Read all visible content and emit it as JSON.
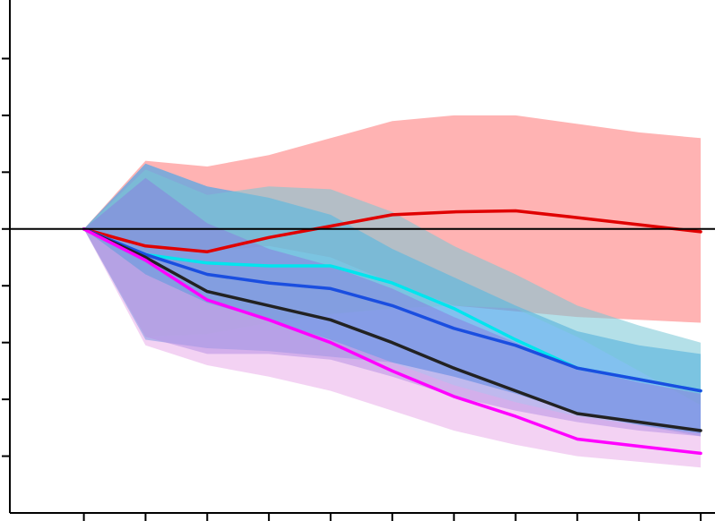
{
  "chart_data": {
    "type": "line",
    "title": "",
    "xlabel": "",
    "ylabel": "",
    "x": [
      0,
      1,
      2,
      3,
      4,
      5,
      6,
      7,
      8,
      9,
      10
    ],
    "xlim": [
      -1.2,
      10
    ],
    "ylim": [
      -5,
      4
    ],
    "yticks": [
      -4,
      -3,
      -2,
      -1,
      0,
      1,
      2,
      3
    ],
    "xticks": [
      0,
      1,
      2,
      3,
      4,
      5,
      6,
      7,
      8,
      9,
      10
    ],
    "grid": false,
    "zero_line": true,
    "bands": [
      {
        "color": "#ff9a9a",
        "opacity": 0.75,
        "lower": [
          0,
          -0.3,
          -0.4,
          null,
          null,
          null,
          null,
          null,
          null,
          null,
          -1.65
        ],
        "upper": [
          0,
          1.2,
          1.1,
          null,
          null,
          null,
          null,
          null,
          null,
          null,
          1.6
        ]
      },
      {
        "color": "#4da6e8",
        "opacity": 0.7,
        "lower": [
          0,
          -1.95,
          -2.1,
          null,
          null,
          null,
          null,
          null,
          null,
          null,
          -3.65
        ],
        "upper": [
          0,
          1.15,
          0.75,
          null,
          null,
          null,
          null,
          null,
          null,
          null,
          -2.2
        ]
      },
      {
        "color": "#77c7d6",
        "opacity": 0.55,
        "lower": [
          0,
          -1.9,
          -1.85,
          null,
          null,
          null,
          null,
          null,
          null,
          null,
          -3.1
        ],
        "upper": [
          0,
          1.05,
          0.6,
          null,
          null,
          null,
          null,
          null,
          null,
          null,
          -2.0
        ]
      },
      {
        "color": "#8a7fe0",
        "opacity": 0.55,
        "lower": [
          0,
          -1.9,
          -2.2,
          null,
          null,
          null,
          null,
          null,
          null,
          null,
          -3.65
        ],
        "upper": [
          0,
          0.9,
          0.1,
          null,
          null,
          null,
          null,
          null,
          null,
          null,
          -2.9
        ]
      },
      {
        "color": "#e8a6e8",
        "opacity": 0.5,
        "lower": [
          0,
          -2.05,
          -2.4,
          null,
          null,
          null,
          null,
          null,
          null,
          null,
          -4.2
        ],
        "upper": [
          0,
          -0.8,
          -1.3,
          null,
          null,
          null,
          null,
          null,
          null,
          null,
          -3.6
        ]
      }
    ],
    "series": [
      {
        "color": "#e00000",
        "values": [
          0,
          -0.3,
          -0.4,
          -0.15,
          0.05,
          0.25,
          0.3,
          0.32,
          0.2,
          null,
          -0.05
        ]
      },
      {
        "color": "#00e5ee",
        "values": [
          0,
          -0.45,
          -0.6,
          -0.65,
          -0.65,
          -0.95,
          -1.4,
          -1.95,
          -2.45,
          null,
          -2.85
        ]
      },
      {
        "color": "#1a4ee0",
        "values": [
          0,
          -0.45,
          -0.8,
          -0.95,
          -1.05,
          -1.35,
          -1.75,
          -2.05,
          -2.45,
          null,
          -2.85
        ]
      },
      {
        "color": "#222222",
        "values": [
          0,
          -0.5,
          -1.1,
          -1.35,
          -1.6,
          -2.0,
          -2.45,
          -2.85,
          -3.25,
          null,
          -3.55
        ]
      },
      {
        "color": "#ff00ff",
        "values": [
          0,
          -0.55,
          -1.25,
          -1.6,
          -2.0,
          -2.5,
          -2.95,
          -3.3,
          -3.7,
          null,
          -3.95
        ]
      }
    ]
  }
}
